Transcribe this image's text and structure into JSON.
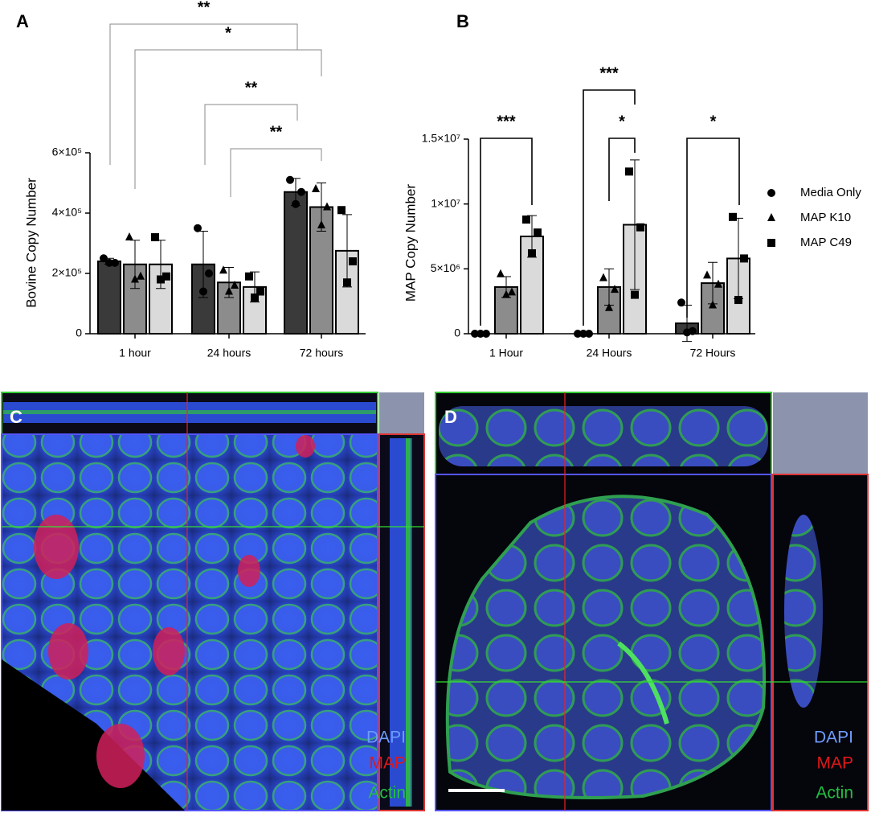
{
  "chart_data": [
    {
      "type": "bar",
      "title": "A",
      "y_label": "Bovine Copy Number",
      "categories": [
        "1 hour",
        "24 hours",
        "72 hours"
      ],
      "ylim": [
        0,
        600000
      ],
      "yticks": [
        0,
        {
          "value": 200000,
          "label": "2×10⁵"
        },
        {
          "value": 400000,
          "label": "4×10⁵"
        },
        {
          "value": 600000,
          "label": "6×10⁵"
        }
      ],
      "series": [
        {
          "color": "#3a3a3a",
          "marker": "circle",
          "values": [
            240000,
            230000,
            470000
          ],
          "errors": [
            10000,
            110000,
            45000
          ],
          "points": [
            [
              250000,
              235000,
              235000
            ],
            [
              350000,
              200000,
              140000
            ],
            [
              510000,
              470000,
              430000
            ]
          ]
        },
        {
          "color": "#8c8c8c",
          "marker": "triangle",
          "values": [
            230000,
            170000,
            420000
          ],
          "errors": [
            80000,
            50000,
            80000
          ],
          "points": [
            [
              320000,
              190000,
              180000
            ],
            [
              210000,
              160000,
              140000
            ],
            [
              480000,
              420000,
              360000
            ]
          ]
        },
        {
          "color": "#dadada",
          "marker": "square",
          "values": [
            230000,
            155000,
            275000
          ],
          "errors": [
            80000,
            50000,
            120000
          ],
          "points": [
            [
              320000,
              190000,
              180000
            ],
            [
              190000,
              140000,
              120000
            ],
            [
              410000,
              240000,
              170000
            ]
          ]
        }
      ],
      "significance": [
        "**",
        "*",
        "**",
        "**"
      ]
    },
    {
      "type": "bar",
      "title": "B",
      "y_label": "MAP Copy Number",
      "categories": [
        "1 Hour",
        "24 Hours",
        "72 Hours"
      ],
      "ylim": [
        0,
        15000000
      ],
      "yticks": [
        0,
        {
          "value": 5000000,
          "label": "5×10⁶"
        },
        {
          "value": 10000000,
          "label": "1×10⁷"
        },
        {
          "value": 15000000,
          "label": "1.5×10⁷"
        }
      ],
      "series": [
        {
          "name": "Media Only",
          "color": "#3a3a3a",
          "marker": "circle",
          "values": [
            0,
            0,
            800000
          ],
          "errors": [
            0,
            0,
            1400000
          ],
          "points": [
            [
              0,
              0,
              0
            ],
            [
              0,
              0,
              0
            ],
            [
              2400000,
              200000,
              100000
            ]
          ]
        },
        {
          "name": "MAP K10",
          "color": "#8c8c8c",
          "marker": "triangle",
          "values": [
            3600000,
            3600000,
            3900000
          ],
          "errors": [
            800000,
            1400000,
            1600000
          ],
          "points": [
            [
              4600000,
              3200000,
              3000000
            ],
            [
              4300000,
              3400000,
              2000000
            ],
            [
              4500000,
              3800000,
              2200000
            ]
          ]
        },
        {
          "name": "MAP C49",
          "color": "#dadada",
          "marker": "square",
          "values": [
            7500000,
            8400000,
            5800000
          ],
          "errors": [
            1600000,
            5000000,
            3100000
          ],
          "points": [
            [
              8800000,
              7800000,
              6200000
            ],
            [
              12500000,
              8200000,
              3000000
            ],
            [
              9000000,
              5800000,
              2600000
            ]
          ]
        }
      ],
      "significance": [
        "***",
        "***",
        "*",
        "*"
      ]
    }
  ],
  "panels": [
    {
      "label": "C",
      "channels": [
        "DAPI",
        "MAP",
        "Actin"
      ]
    },
    {
      "label": "D",
      "channels": [
        "DAPI",
        "MAP",
        "Actin"
      ]
    }
  ]
}
